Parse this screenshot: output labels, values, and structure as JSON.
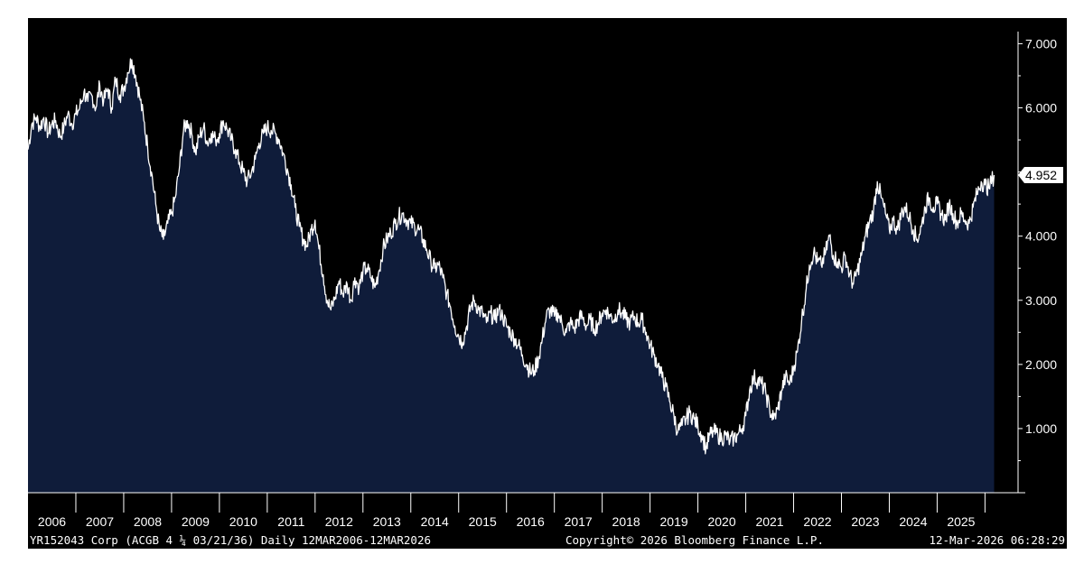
{
  "chart_data": {
    "type": "area",
    "x_labels": [
      "2006",
      "2007",
      "2008",
      "2009",
      "2010",
      "2011",
      "2012",
      "2013",
      "2014",
      "2015",
      "2016",
      "2017",
      "2018",
      "2019",
      "2020",
      "2021",
      "2022",
      "2023",
      "2024",
      "2025"
    ],
    "y_ticks": [
      "1.000",
      "2.000",
      "3.000",
      "4.000",
      "5.000",
      "6.000",
      "7.000"
    ],
    "ylim": [
      0,
      7.4
    ],
    "xlim": [
      2006.0,
      2026.2
    ],
    "last_value_label": "4.952",
    "series": [
      {
        "values": [
          [
            2006.0,
            5.35
          ],
          [
            2006.08,
            5.75
          ],
          [
            2006.17,
            5.85
          ],
          [
            2006.25,
            5.7
          ],
          [
            2006.33,
            5.85
          ],
          [
            2006.42,
            5.6
          ],
          [
            2006.5,
            5.75
          ],
          [
            2006.58,
            5.8
          ],
          [
            2006.67,
            5.55
          ],
          [
            2006.75,
            5.7
          ],
          [
            2006.83,
            5.9
          ],
          [
            2006.92,
            5.75
          ],
          [
            2007.0,
            5.9
          ],
          [
            2007.08,
            6.0
          ],
          [
            2007.17,
            6.25
          ],
          [
            2007.25,
            6.1
          ],
          [
            2007.33,
            6.2
          ],
          [
            2007.42,
            6.0
          ],
          [
            2007.5,
            6.35
          ],
          [
            2007.58,
            6.1
          ],
          [
            2007.67,
            6.3
          ],
          [
            2007.75,
            6.0
          ],
          [
            2007.83,
            6.45
          ],
          [
            2007.92,
            6.2
          ],
          [
            2008.0,
            6.3
          ],
          [
            2008.08,
            6.55
          ],
          [
            2008.17,
            6.75
          ],
          [
            2008.25,
            6.5
          ],
          [
            2008.33,
            6.2
          ],
          [
            2008.42,
            5.8
          ],
          [
            2008.5,
            5.4
          ],
          [
            2008.58,
            5.0
          ],
          [
            2008.67,
            4.5
          ],
          [
            2008.75,
            4.1
          ],
          [
            2008.83,
            3.95
          ],
          [
            2008.92,
            4.2
          ],
          [
            2009.0,
            4.35
          ],
          [
            2009.08,
            4.6
          ],
          [
            2009.17,
            5.1
          ],
          [
            2009.25,
            5.65
          ],
          [
            2009.33,
            5.8
          ],
          [
            2009.42,
            5.6
          ],
          [
            2009.5,
            5.3
          ],
          [
            2009.58,
            5.55
          ],
          [
            2009.67,
            5.7
          ],
          [
            2009.75,
            5.45
          ],
          [
            2009.83,
            5.6
          ],
          [
            2009.92,
            5.5
          ],
          [
            2010.0,
            5.6
          ],
          [
            2010.08,
            5.8
          ],
          [
            2010.17,
            5.65
          ],
          [
            2010.25,
            5.5
          ],
          [
            2010.33,
            5.35
          ],
          [
            2010.42,
            5.15
          ],
          [
            2010.5,
            5.0
          ],
          [
            2010.58,
            4.85
          ],
          [
            2010.67,
            5.0
          ],
          [
            2010.75,
            5.2
          ],
          [
            2010.83,
            5.45
          ],
          [
            2010.92,
            5.6
          ],
          [
            2011.0,
            5.7
          ],
          [
            2011.08,
            5.65
          ],
          [
            2011.17,
            5.6
          ],
          [
            2011.25,
            5.5
          ],
          [
            2011.33,
            5.3
          ],
          [
            2011.42,
            5.05
          ],
          [
            2011.5,
            4.8
          ],
          [
            2011.58,
            4.45
          ],
          [
            2011.67,
            4.15
          ],
          [
            2011.75,
            3.95
          ],
          [
            2011.83,
            3.85
          ],
          [
            2011.92,
            4.1
          ],
          [
            2012.0,
            4.25
          ],
          [
            2012.08,
            3.8
          ],
          [
            2012.17,
            3.4
          ],
          [
            2012.25,
            3.0
          ],
          [
            2012.33,
            2.85
          ],
          [
            2012.42,
            3.05
          ],
          [
            2012.5,
            3.3
          ],
          [
            2012.58,
            3.1
          ],
          [
            2012.67,
            3.25
          ],
          [
            2012.75,
            3.0
          ],
          [
            2012.83,
            3.35
          ],
          [
            2012.92,
            3.2
          ],
          [
            2013.0,
            3.45
          ],
          [
            2013.08,
            3.5
          ],
          [
            2013.17,
            3.35
          ],
          [
            2013.25,
            3.2
          ],
          [
            2013.33,
            3.45
          ],
          [
            2013.42,
            3.8
          ],
          [
            2013.5,
            3.95
          ],
          [
            2013.58,
            4.05
          ],
          [
            2013.67,
            4.2
          ],
          [
            2013.75,
            4.3
          ],
          [
            2013.83,
            4.35
          ],
          [
            2013.92,
            4.25
          ],
          [
            2014.0,
            4.2
          ],
          [
            2014.08,
            4.15
          ],
          [
            2014.17,
            4.1
          ],
          [
            2014.25,
            3.95
          ],
          [
            2014.33,
            3.8
          ],
          [
            2014.42,
            3.6
          ],
          [
            2014.5,
            3.5
          ],
          [
            2014.58,
            3.55
          ],
          [
            2014.67,
            3.35
          ],
          [
            2014.75,
            3.1
          ],
          [
            2014.83,
            2.9
          ],
          [
            2014.92,
            2.6
          ],
          [
            2015.0,
            2.45
          ],
          [
            2015.08,
            2.35
          ],
          [
            2015.17,
            2.6
          ],
          [
            2015.25,
            2.9
          ],
          [
            2015.33,
            3.0
          ],
          [
            2015.42,
            2.85
          ],
          [
            2015.5,
            2.8
          ],
          [
            2015.58,
            2.65
          ],
          [
            2015.67,
            2.8
          ],
          [
            2015.75,
            2.7
          ],
          [
            2015.83,
            2.85
          ],
          [
            2015.92,
            2.75
          ],
          [
            2016.0,
            2.6
          ],
          [
            2016.08,
            2.5
          ],
          [
            2016.17,
            2.4
          ],
          [
            2016.25,
            2.3
          ],
          [
            2016.33,
            2.15
          ],
          [
            2016.42,
            2.0
          ],
          [
            2016.5,
            1.88
          ],
          [
            2016.58,
            1.9
          ],
          [
            2016.67,
            2.1
          ],
          [
            2016.75,
            2.4
          ],
          [
            2016.83,
            2.75
          ],
          [
            2016.92,
            2.85
          ],
          [
            2017.0,
            2.75
          ],
          [
            2017.08,
            2.8
          ],
          [
            2017.17,
            2.6
          ],
          [
            2017.25,
            2.5
          ],
          [
            2017.33,
            2.65
          ],
          [
            2017.42,
            2.55
          ],
          [
            2017.5,
            2.7
          ],
          [
            2017.58,
            2.75
          ],
          [
            2017.67,
            2.6
          ],
          [
            2017.75,
            2.7
          ],
          [
            2017.83,
            2.55
          ],
          [
            2017.92,
            2.65
          ],
          [
            2018.0,
            2.8
          ],
          [
            2018.08,
            2.85
          ],
          [
            2018.17,
            2.75
          ],
          [
            2018.25,
            2.7
          ],
          [
            2018.33,
            2.85
          ],
          [
            2018.42,
            2.8
          ],
          [
            2018.5,
            2.7
          ],
          [
            2018.58,
            2.65
          ],
          [
            2018.67,
            2.75
          ],
          [
            2018.75,
            2.65
          ],
          [
            2018.83,
            2.7
          ],
          [
            2018.92,
            2.5
          ],
          [
            2019.0,
            2.3
          ],
          [
            2019.08,
            2.15
          ],
          [
            2019.17,
            2.0
          ],
          [
            2019.25,
            1.8
          ],
          [
            2019.33,
            1.65
          ],
          [
            2019.42,
            1.4
          ],
          [
            2019.5,
            1.2
          ],
          [
            2019.58,
            0.95
          ],
          [
            2019.67,
            1.05
          ],
          [
            2019.75,
            1.15
          ],
          [
            2019.83,
            1.25
          ],
          [
            2019.92,
            1.15
          ],
          [
            2020.0,
            1.05
          ],
          [
            2020.08,
            0.9
          ],
          [
            2020.17,
            0.7
          ],
          [
            2020.25,
            0.9
          ],
          [
            2020.33,
            0.95
          ],
          [
            2020.42,
            0.9
          ],
          [
            2020.5,
            0.85
          ],
          [
            2020.58,
            0.9
          ],
          [
            2020.67,
            0.8
          ],
          [
            2020.75,
            0.85
          ],
          [
            2020.83,
            0.9
          ],
          [
            2020.92,
            1.0
          ],
          [
            2021.0,
            1.2
          ],
          [
            2021.08,
            1.6
          ],
          [
            2021.17,
            1.8
          ],
          [
            2021.25,
            1.75
          ],
          [
            2021.33,
            1.7
          ],
          [
            2021.42,
            1.55
          ],
          [
            2021.5,
            1.3
          ],
          [
            2021.58,
            1.15
          ],
          [
            2021.67,
            1.3
          ],
          [
            2021.75,
            1.6
          ],
          [
            2021.83,
            1.8
          ],
          [
            2021.92,
            1.7
          ],
          [
            2022.0,
            1.95
          ],
          [
            2022.08,
            2.2
          ],
          [
            2022.17,
            2.7
          ],
          [
            2022.25,
            3.1
          ],
          [
            2022.33,
            3.55
          ],
          [
            2022.42,
            3.75
          ],
          [
            2022.5,
            3.6
          ],
          [
            2022.58,
            3.55
          ],
          [
            2022.67,
            3.75
          ],
          [
            2022.75,
            4.0
          ],
          [
            2022.83,
            3.7
          ],
          [
            2022.92,
            3.6
          ],
          [
            2023.0,
            3.5
          ],
          [
            2023.08,
            3.7
          ],
          [
            2023.17,
            3.4
          ],
          [
            2023.25,
            3.25
          ],
          [
            2023.33,
            3.45
          ],
          [
            2023.42,
            3.7
          ],
          [
            2023.5,
            4.0
          ],
          [
            2023.58,
            4.2
          ],
          [
            2023.67,
            4.4
          ],
          [
            2023.75,
            4.85
          ],
          [
            2023.83,
            4.6
          ],
          [
            2023.92,
            4.35
          ],
          [
            2024.0,
            4.1
          ],
          [
            2024.08,
            4.25
          ],
          [
            2024.17,
            4.1
          ],
          [
            2024.25,
            4.35
          ],
          [
            2024.33,
            4.45
          ],
          [
            2024.42,
            4.3
          ],
          [
            2024.5,
            4.1
          ],
          [
            2024.58,
            3.95
          ],
          [
            2024.67,
            4.15
          ],
          [
            2024.75,
            4.45
          ],
          [
            2024.83,
            4.6
          ],
          [
            2024.92,
            4.45
          ],
          [
            2025.0,
            4.5
          ],
          [
            2025.08,
            4.35
          ],
          [
            2025.17,
            4.25
          ],
          [
            2025.25,
            4.5
          ],
          [
            2025.33,
            4.35
          ],
          [
            2025.42,
            4.2
          ],
          [
            2025.5,
            4.35
          ],
          [
            2025.58,
            4.25
          ],
          [
            2025.67,
            4.2
          ],
          [
            2025.75,
            4.45
          ],
          [
            2025.83,
            4.65
          ],
          [
            2025.92,
            4.85
          ],
          [
            2026.0,
            4.8
          ],
          [
            2026.08,
            4.75
          ],
          [
            2026.19,
            4.952
          ]
        ]
      }
    ],
    "grid": false,
    "colors": {
      "background": "#000000",
      "area": "#0f1c3a",
      "line": "#ffffff",
      "text": "#ffffff"
    }
  },
  "footer": {
    "left": "YR152043 Corp (ACGB 4 ¼ 03/21/36) Daily 12MAR2006-12MAR2026",
    "middle": "Copyright© 2026 Bloomberg Finance L.P.",
    "right": "12-Mar-2026 06:28:29"
  }
}
